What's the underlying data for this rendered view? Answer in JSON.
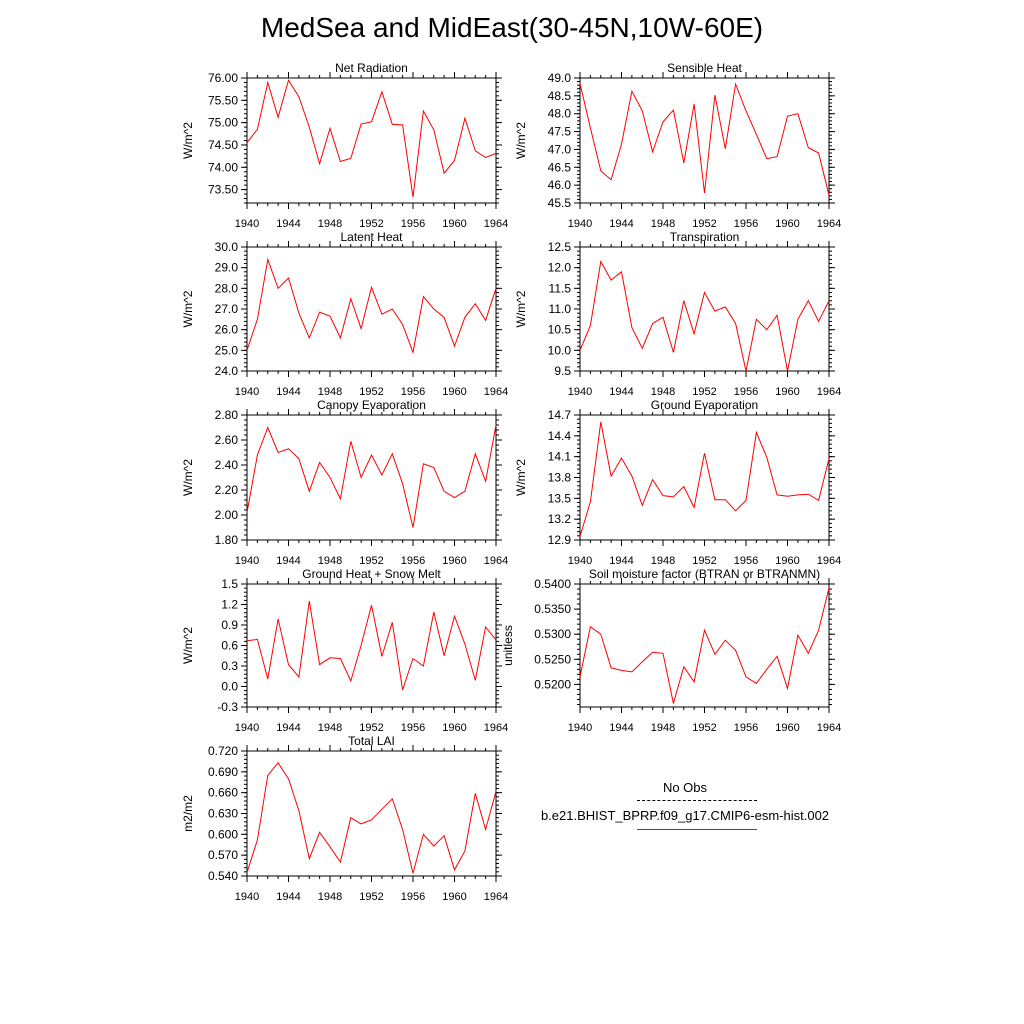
{
  "title": "MedSea and MidEast(30-45N,10W-60E)",
  "colors": {
    "series": "#ff0000",
    "axis": "#000000",
    "obs": "#000000"
  },
  "legend": {
    "obs_label": "No Obs",
    "model_label": "b.e21.BHIST_BPRP.f09_g17.CMIP6-esm-hist.002"
  },
  "chart_data": [
    {
      "type": "line",
      "title": "Net Radiation",
      "ylabel": "W/m^2",
      "xlim": [
        1940,
        1964
      ],
      "ylim": [
        73.2,
        76.0
      ],
      "yticks": [
        "73.50",
        "74.00",
        "74.50",
        "75.00",
        "75.50",
        "76.00"
      ],
      "ytick_values": [
        73.5,
        74.0,
        74.5,
        75.0,
        75.5,
        76.0
      ],
      "xticks": [
        "1940",
        "1944",
        "1948",
        "1952",
        "1956",
        "1960",
        "1964"
      ],
      "x": [
        1940,
        1941,
        1942,
        1943,
        1944,
        1945,
        1946,
        1947,
        1948,
        1949,
        1950,
        1951,
        1952,
        1953,
        1954,
        1955,
        1956,
        1957,
        1958,
        1959,
        1960,
        1961,
        1962,
        1963,
        1964
      ],
      "series": [
        {
          "name": "b.e21.BHIST_BPRP.f09_g17.CMIP6-esm-hist.002",
          "values": [
            74.55,
            74.85,
            75.9,
            75.12,
            75.95,
            75.58,
            74.9,
            74.08,
            74.87,
            74.13,
            74.2,
            74.97,
            75.02,
            75.69,
            74.96,
            74.95,
            73.33,
            75.26,
            74.84,
            73.87,
            74.15,
            75.1,
            74.37,
            74.22,
            74.31
          ]
        }
      ]
    },
    {
      "type": "line",
      "title": "Sensible Heat",
      "ylabel": "W/m^2",
      "xlim": [
        1940,
        1964
      ],
      "ylim": [
        45.5,
        49.0
      ],
      "yticks": [
        "45.5",
        "46.0",
        "46.5",
        "47.0",
        "47.5",
        "48.0",
        "48.5",
        "49.0"
      ],
      "ytick_values": [
        45.5,
        46.0,
        46.5,
        47.0,
        47.5,
        48.0,
        48.5,
        49.0
      ],
      "xticks": [
        "1940",
        "1944",
        "1948",
        "1952",
        "1956",
        "1960",
        "1964"
      ],
      "x": [
        1940,
        1941,
        1942,
        1943,
        1944,
        1945,
        1946,
        1947,
        1948,
        1949,
        1950,
        1951,
        1952,
        1953,
        1954,
        1955,
        1956,
        1957,
        1958,
        1959,
        1960,
        1961,
        1962,
        1963,
        1964
      ],
      "series": [
        {
          "name": "b.e21.BHIST_BPRP.f09_g17.CMIP6-esm-hist.002",
          "values": [
            48.85,
            47.6,
            46.4,
            46.15,
            47.15,
            48.63,
            48.08,
            46.93,
            47.77,
            48.1,
            46.62,
            48.27,
            45.78,
            48.52,
            47.02,
            48.83,
            48.08,
            47.42,
            46.74,
            46.8,
            47.93,
            48.0,
            47.05,
            46.9,
            45.72
          ]
        }
      ]
    },
    {
      "type": "line",
      "title": "Latent Heat",
      "ylabel": "W/m^2",
      "xlim": [
        1940,
        1964
      ],
      "ylim": [
        24.0,
        30.0
      ],
      "yticks": [
        "24.0",
        "25.0",
        "26.0",
        "27.0",
        "28.0",
        "29.0",
        "30.0"
      ],
      "ytick_values": [
        24.0,
        25.0,
        26.0,
        27.0,
        28.0,
        29.0,
        30.0
      ],
      "xticks": [
        "1940",
        "1944",
        "1948",
        "1952",
        "1956",
        "1960",
        "1964"
      ],
      "x": [
        1940,
        1941,
        1942,
        1943,
        1944,
        1945,
        1946,
        1947,
        1948,
        1949,
        1950,
        1951,
        1952,
        1953,
        1954,
        1955,
        1956,
        1957,
        1958,
        1959,
        1960,
        1961,
        1962,
        1963,
        1964
      ],
      "series": [
        {
          "name": "b.e21.BHIST_BPRP.f09_g17.CMIP6-esm-hist.002",
          "values": [
            25.0,
            26.5,
            29.4,
            28.0,
            28.5,
            26.8,
            25.6,
            26.85,
            26.65,
            25.6,
            27.5,
            26.05,
            28.05,
            26.75,
            27.0,
            26.25,
            24.9,
            27.6,
            27.0,
            26.6,
            25.2,
            26.6,
            27.25,
            26.45,
            28.0
          ]
        }
      ]
    },
    {
      "type": "line",
      "title": "Transpiration",
      "ylabel": "W/m^2",
      "xlim": [
        1940,
        1964
      ],
      "ylim": [
        9.5,
        12.5
      ],
      "yticks": [
        "9.5",
        "10.0",
        "10.5",
        "11.0",
        "11.5",
        "12.0",
        "12.5"
      ],
      "ytick_values": [
        9.5,
        10.0,
        10.5,
        11.0,
        11.5,
        12.0,
        12.5
      ],
      "xticks": [
        "1940",
        "1944",
        "1948",
        "1952",
        "1956",
        "1960",
        "1964"
      ],
      "x": [
        1940,
        1941,
        1942,
        1943,
        1944,
        1945,
        1946,
        1947,
        1948,
        1949,
        1950,
        1951,
        1952,
        1953,
        1954,
        1955,
        1956,
        1957,
        1958,
        1959,
        1960,
        1961,
        1962,
        1963,
        1964
      ],
      "series": [
        {
          "name": "b.e21.BHIST_BPRP.f09_g17.CMIP6-esm-hist.002",
          "values": [
            10.0,
            10.6,
            12.15,
            11.7,
            11.9,
            10.55,
            10.05,
            10.65,
            10.8,
            9.95,
            11.2,
            10.4,
            11.4,
            10.95,
            11.05,
            10.65,
            9.5,
            10.75,
            10.5,
            10.85,
            9.5,
            10.75,
            11.2,
            10.7,
            11.2
          ]
        }
      ]
    },
    {
      "type": "line",
      "title": "Canopy Evaporation",
      "ylabel": "W/m^2",
      "xlim": [
        1940,
        1964
      ],
      "ylim": [
        1.8,
        2.8
      ],
      "yticks": [
        "1.80",
        "2.00",
        "2.20",
        "2.40",
        "2.60",
        "2.80"
      ],
      "ytick_values": [
        1.8,
        2.0,
        2.2,
        2.4,
        2.6,
        2.8
      ],
      "xticks": [
        "1940",
        "1944",
        "1948",
        "1952",
        "1956",
        "1960",
        "1964"
      ],
      "x": [
        1940,
        1941,
        1942,
        1943,
        1944,
        1945,
        1946,
        1947,
        1948,
        1949,
        1950,
        1951,
        1952,
        1953,
        1954,
        1955,
        1956,
        1957,
        1958,
        1959,
        1960,
        1961,
        1962,
        1963,
        1964
      ],
      "series": [
        {
          "name": "b.e21.BHIST_BPRP.f09_g17.CMIP6-esm-hist.002",
          "values": [
            2.02,
            2.48,
            2.7,
            2.5,
            2.53,
            2.45,
            2.19,
            2.42,
            2.3,
            2.13,
            2.59,
            2.3,
            2.48,
            2.32,
            2.49,
            2.25,
            1.9,
            2.41,
            2.38,
            2.19,
            2.14,
            2.19,
            2.49,
            2.27,
            2.72
          ]
        }
      ]
    },
    {
      "type": "line",
      "title": "Ground Evaporation",
      "ylabel": "W/m^2",
      "xlim": [
        1940,
        1964
      ],
      "ylim": [
        12.9,
        14.7
      ],
      "yticks": [
        "12.9",
        "13.2",
        "13.5",
        "13.8",
        "14.1",
        "14.4",
        "14.7"
      ],
      "ytick_values": [
        12.9,
        13.2,
        13.5,
        13.8,
        14.1,
        14.4,
        14.7
      ],
      "xticks": [
        "1940",
        "1944",
        "1948",
        "1952",
        "1956",
        "1960",
        "1964"
      ],
      "x": [
        1940,
        1941,
        1942,
        1943,
        1944,
        1945,
        1946,
        1947,
        1948,
        1949,
        1950,
        1951,
        1952,
        1953,
        1954,
        1955,
        1956,
        1957,
        1958,
        1959,
        1960,
        1961,
        1962,
        1963,
        1964
      ],
      "series": [
        {
          "name": "b.e21.BHIST_BPRP.f09_g17.CMIP6-esm-hist.002",
          "values": [
            12.95,
            13.45,
            14.6,
            13.82,
            14.08,
            13.82,
            13.4,
            13.77,
            13.54,
            13.52,
            13.67,
            13.37,
            14.15,
            13.48,
            13.48,
            13.32,
            13.47,
            14.45,
            14.09,
            13.55,
            13.53,
            13.55,
            13.56,
            13.47,
            14.07
          ]
        }
      ]
    },
    {
      "type": "line",
      "title": "Ground Heat + Snow Melt",
      "ylabel": "W/m^2",
      "xlim": [
        1940,
        1964
      ],
      "ylim": [
        -0.3,
        1.5
      ],
      "yticks": [
        "-0.3",
        "0.0",
        "0.3",
        "0.6",
        "0.9",
        "1.2",
        "1.5"
      ],
      "ytick_values": [
        -0.3,
        0.0,
        0.3,
        0.6,
        0.9,
        1.2,
        1.5
      ],
      "xticks": [
        "1940",
        "1944",
        "1948",
        "1952",
        "1956",
        "1960",
        "1964"
      ],
      "x": [
        1940,
        1941,
        1942,
        1943,
        1944,
        1945,
        1946,
        1947,
        1948,
        1949,
        1950,
        1951,
        1952,
        1953,
        1954,
        1955,
        1956,
        1957,
        1958,
        1959,
        1960,
        1961,
        1962,
        1963,
        1964
      ],
      "series": [
        {
          "name": "b.e21.BHIST_BPRP.f09_g17.CMIP6-esm-hist.002",
          "values": [
            0.67,
            0.69,
            0.11,
            0.99,
            0.32,
            0.14,
            1.25,
            0.32,
            0.42,
            0.41,
            0.08,
            0.6,
            1.19,
            0.44,
            0.94,
            -0.05,
            0.41,
            0.3,
            1.09,
            0.45,
            1.03,
            0.62,
            0.09,
            0.87,
            0.68
          ]
        }
      ]
    },
    {
      "type": "line",
      "title": "Soil moisture factor (BTRAN or BTRANMN)",
      "ylabel": "unitless",
      "xlim": [
        1940,
        1964
      ],
      "ylim": [
        0.5155,
        0.54
      ],
      "yticks": [
        "0.5200",
        "0.5250",
        "0.5300",
        "0.5350",
        "0.5400"
      ],
      "ytick_values": [
        0.52,
        0.525,
        0.53,
        0.535,
        0.54
      ],
      "xticks": [
        "1940",
        "1944",
        "1948",
        "1952",
        "1956",
        "1960",
        "1964"
      ],
      "x": [
        1940,
        1941,
        1942,
        1943,
        1944,
        1945,
        1946,
        1947,
        1948,
        1949,
        1950,
        1951,
        1952,
        1953,
        1954,
        1955,
        1956,
        1957,
        1958,
        1959,
        1960,
        1961,
        1962,
        1963,
        1964
      ],
      "series": [
        {
          "name": "b.e21.BHIST_BPRP.f09_g17.CMIP6-esm-hist.002",
          "values": [
            0.5215,
            0.5315,
            0.53,
            0.5233,
            0.5228,
            0.5225,
            0.5245,
            0.5264,
            0.5262,
            0.5162,
            0.5235,
            0.5205,
            0.5308,
            0.526,
            0.5288,
            0.5268,
            0.5215,
            0.5202,
            0.523,
            0.5256,
            0.5192,
            0.5298,
            0.5262,
            0.5308,
            0.5392
          ]
        }
      ]
    },
    {
      "type": "line",
      "title": "Total LAI",
      "ylabel": "m2/m2",
      "xlim": [
        1940,
        1964
      ],
      "ylim": [
        0.54,
        0.72
      ],
      "yticks": [
        "0.540",
        "0.570",
        "0.600",
        "0.630",
        "0.660",
        "0.690",
        "0.720"
      ],
      "ytick_values": [
        0.54,
        0.57,
        0.6,
        0.63,
        0.66,
        0.69,
        0.72
      ],
      "xticks": [
        "1940",
        "1944",
        "1948",
        "1952",
        "1956",
        "1960",
        "1964"
      ],
      "x": [
        1940,
        1941,
        1942,
        1943,
        1944,
        1945,
        1946,
        1947,
        1948,
        1949,
        1950,
        1951,
        1952,
        1953,
        1954,
        1955,
        1956,
        1957,
        1958,
        1959,
        1960,
        1961,
        1962,
        1963,
        1964
      ],
      "series": [
        {
          "name": "b.e21.BHIST_BPRP.f09_g17.CMIP6-esm-hist.002",
          "values": [
            0.545,
            0.592,
            0.685,
            0.703,
            0.68,
            0.634,
            0.565,
            0.603,
            0.582,
            0.56,
            0.624,
            0.615,
            0.621,
            0.636,
            0.651,
            0.607,
            0.544,
            0.6,
            0.583,
            0.598,
            0.549,
            0.576,
            0.659,
            0.607,
            0.662
          ]
        }
      ]
    }
  ]
}
